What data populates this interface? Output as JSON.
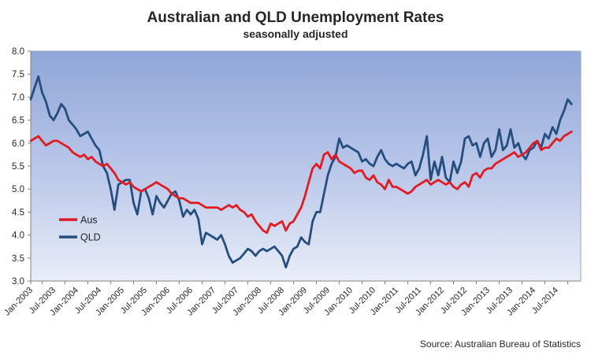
{
  "page": {
    "source_note": "Source: Australian Bureau of Statistics"
  },
  "chart_data": {
    "type": "line",
    "title": "Australian and QLD Unemployment Rates",
    "subtitle": "seasonally adjusted",
    "x_unit": "month",
    "x_start": "Jan-2003",
    "x_end": "Nov-2014",
    "x_tick_labels": [
      "Jan-2003",
      "Jul-2003",
      "Jan-2004",
      "Jul-2004",
      "Jan-2005",
      "Jul-2005",
      "Jan-2006",
      "Jul-2006",
      "Jan-2007",
      "Jul-2007",
      "Jan-2008",
      "Jul-2008",
      "Jan-2009",
      "Jul-2009",
      "Jan-2010",
      "Jul-2010",
      "Jan-2011",
      "Jul-2011",
      "Jan-2012",
      "Jul-2012",
      "Jan-2013",
      "Jul-2013",
      "Jan-2014",
      "Jul-2014"
    ],
    "months_per_tick": 6,
    "ylim": [
      3.0,
      8.0
    ],
    "y_tick_step": 0.5,
    "y_tick_labels": [
      "3.0",
      "3.5",
      "4.0",
      "4.5",
      "5.0",
      "5.5",
      "6.0",
      "6.5",
      "7.0",
      "7.5",
      "8.0"
    ],
    "grid": false,
    "legend_position": "inside-left",
    "plot_background": {
      "top": "#8FA6D8",
      "mid": "#BCC9EA",
      "bottom": "#E9EDF8"
    },
    "axis_color": "#808080",
    "series": [
      {
        "name": "Aus",
        "color": "#E11B22",
        "values": [
          6.05,
          6.1,
          6.15,
          6.05,
          5.95,
          6.0,
          6.05,
          6.05,
          6.0,
          5.95,
          5.9,
          5.8,
          5.75,
          5.7,
          5.75,
          5.65,
          5.7,
          5.6,
          5.55,
          5.5,
          5.55,
          5.45,
          5.35,
          5.2,
          5.15,
          5.1,
          5.15,
          5.05,
          5.0,
          4.95,
          5.0,
          5.05,
          5.1,
          5.15,
          5.1,
          5.05,
          5.0,
          4.9,
          4.85,
          4.8,
          4.8,
          4.75,
          4.7,
          4.7,
          4.7,
          4.65,
          4.6,
          4.6,
          4.6,
          4.6,
          4.55,
          4.6,
          4.65,
          4.6,
          4.65,
          4.55,
          4.5,
          4.4,
          4.45,
          4.3,
          4.2,
          4.1,
          4.05,
          4.25,
          4.2,
          4.25,
          4.3,
          4.1,
          4.25,
          4.3,
          4.45,
          4.6,
          4.85,
          5.15,
          5.45,
          5.55,
          5.45,
          5.75,
          5.8,
          5.65,
          5.75,
          5.6,
          5.55,
          5.5,
          5.45,
          5.35,
          5.4,
          5.4,
          5.25,
          5.2,
          5.3,
          5.15,
          5.1,
          5.0,
          5.2,
          5.05,
          5.05,
          5.0,
          4.95,
          4.9,
          4.95,
          5.05,
          5.1,
          5.15,
          5.2,
          5.1,
          5.15,
          5.2,
          5.15,
          5.1,
          5.15,
          5.05,
          5.0,
          5.1,
          5.15,
          5.05,
          5.3,
          5.35,
          5.25,
          5.4,
          5.45,
          5.45,
          5.55,
          5.6,
          5.65,
          5.7,
          5.75,
          5.8,
          5.7,
          5.75,
          5.8,
          5.9,
          6.0,
          6.05,
          5.85,
          5.9,
          5.9,
          6.0,
          6.1,
          6.05,
          6.15,
          6.2,
          6.25
        ]
      },
      {
        "name": "QLD",
        "color": "#254E7F",
        "values": [
          6.95,
          7.2,
          7.45,
          7.1,
          6.9,
          6.6,
          6.5,
          6.65,
          6.85,
          6.75,
          6.5,
          6.4,
          6.3,
          6.15,
          6.2,
          6.25,
          6.1,
          5.95,
          5.85,
          5.5,
          5.35,
          5.0,
          4.55,
          5.1,
          5.15,
          5.2,
          5.2,
          4.7,
          4.45,
          4.95,
          5.0,
          4.8,
          4.45,
          4.85,
          4.7,
          4.6,
          4.75,
          4.9,
          4.95,
          4.75,
          4.4,
          4.55,
          4.45,
          4.55,
          4.35,
          3.8,
          4.05,
          4.0,
          3.95,
          3.9,
          4.0,
          3.8,
          3.55,
          3.4,
          3.45,
          3.5,
          3.6,
          3.7,
          3.65,
          3.55,
          3.65,
          3.7,
          3.65,
          3.7,
          3.75,
          3.65,
          3.55,
          3.3,
          3.55,
          3.7,
          3.75,
          3.95,
          3.85,
          3.8,
          4.3,
          4.5,
          4.5,
          4.9,
          5.3,
          5.55,
          5.7,
          6.1,
          5.9,
          5.95,
          5.9,
          5.85,
          5.8,
          5.6,
          5.65,
          5.55,
          5.5,
          5.7,
          5.85,
          5.65,
          5.55,
          5.5,
          5.55,
          5.5,
          5.45,
          5.55,
          5.6,
          5.3,
          5.45,
          5.75,
          6.15,
          5.2,
          5.6,
          5.3,
          5.7,
          5.25,
          5.15,
          5.6,
          5.35,
          5.6,
          6.1,
          6.15,
          5.95,
          6.0,
          5.7,
          6.0,
          6.1,
          5.7,
          5.85,
          6.3,
          5.85,
          5.95,
          6.3,
          5.9,
          6.0,
          5.75,
          5.65,
          5.85,
          5.9,
          6.05,
          5.9,
          6.2,
          6.1,
          6.35,
          6.2,
          6.5,
          6.7,
          6.95,
          6.85
        ]
      }
    ]
  }
}
